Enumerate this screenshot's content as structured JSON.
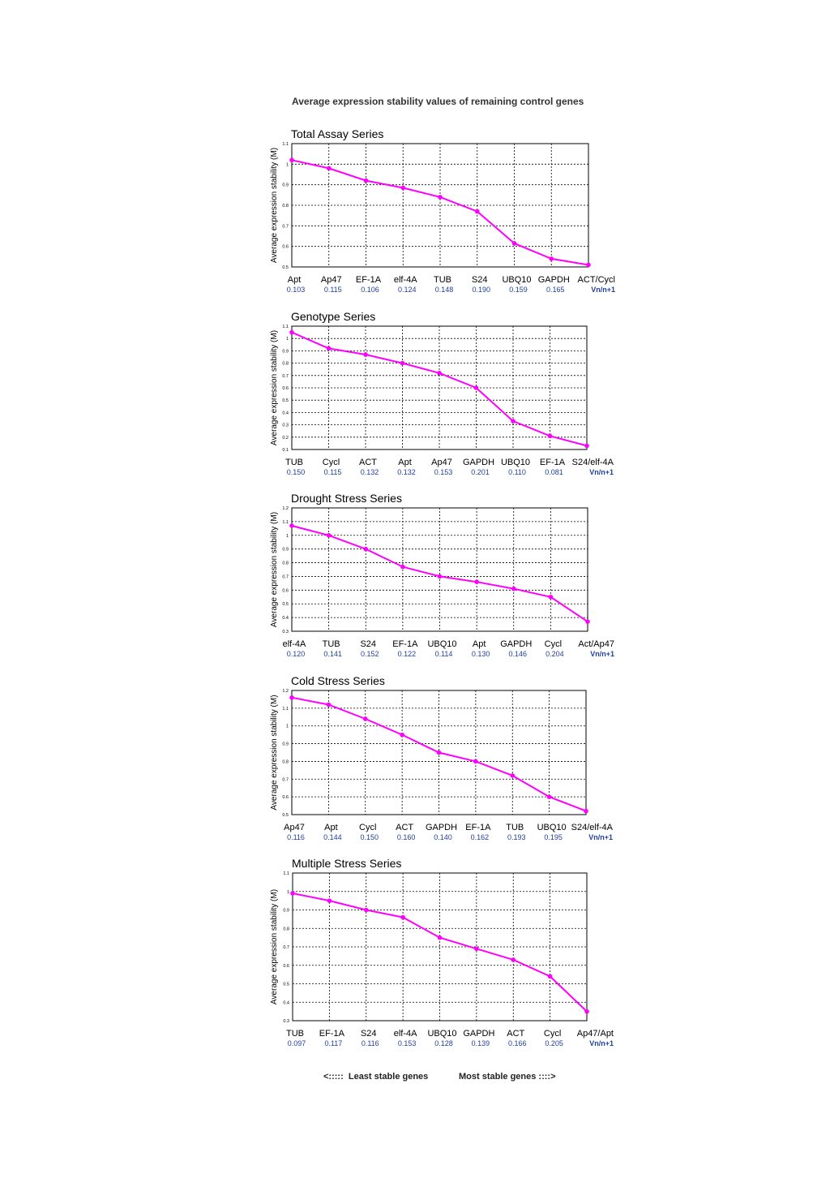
{
  "page_title": "Average expression stability values of remaining control genes",
  "footer": {
    "left_label": "<:::::  Least stable genes",
    "right_label": "Most stable genes ::::>"
  },
  "colors": {
    "line": "#ff00ff",
    "value": "#1f3f9f",
    "grid": "#000000"
  },
  "chart_data": [
    {
      "type": "line",
      "title": "Total Assay Series",
      "ylabel": "Average expression stability (M)",
      "ylim": [
        0.5,
        1.1
      ],
      "yticks": [
        "0.5",
        "0.6",
        "0.7",
        "0.8",
        "0.9",
        "1",
        "1.1"
      ],
      "categories": [
        "Apt",
        "Ap47",
        "EF-1A",
        "elf-4A",
        "TUB",
        "S24",
        "UBQ10",
        "GAPDH",
        "ACT/Cycl"
      ],
      "values": [
        1.02,
        0.98,
        0.92,
        0.885,
        0.84,
        0.77,
        0.615,
        0.54,
        0.51
      ],
      "vn_values": [
        "0.103",
        "0.115",
        "0.106",
        "0.124",
        "0.148",
        "0.190",
        "0.159",
        "0.165"
      ],
      "vn_label": "Vn/n+1",
      "grid": true
    },
    {
      "type": "line",
      "title": "Genotype Series",
      "ylabel": "Average expression stability (M)",
      "ylim": [
        0.1,
        1.1
      ],
      "yticks": [
        "0.1",
        "0.2",
        "0.3",
        "0.4",
        "0.5",
        "0.6",
        "0.7",
        "0.8",
        "0.9",
        "1",
        "1.1"
      ],
      "categories": [
        "TUB",
        "Cycl",
        "ACT",
        "Apt",
        "Ap47",
        "GAPDH",
        "UBQ10",
        "EF-1A",
        "S24/elf-4A"
      ],
      "values": [
        1.05,
        0.92,
        0.87,
        0.8,
        0.72,
        0.6,
        0.33,
        0.21,
        0.13
      ],
      "vn_values": [
        "0.150",
        "0.115",
        "0.132",
        "0.132",
        "0.153",
        "0.201",
        "0.110",
        "0.081"
      ],
      "vn_label": "Vn/n+1",
      "grid": true
    },
    {
      "type": "line",
      "title": "Drought Stress Series",
      "ylabel": "Average expression stability (M)",
      "ylim": [
        0.3,
        1.2
      ],
      "yticks": [
        "0.3",
        "0.4",
        "0.5",
        "0.6",
        "0.7",
        "0.8",
        "0.9",
        "1",
        "1.1",
        "1.2"
      ],
      "categories": [
        "elf-4A",
        "TUB",
        "S24",
        "EF-1A",
        "UBQ10",
        "Apt",
        "GAPDH",
        "Cycl",
        "Act/Ap47"
      ],
      "values": [
        1.07,
        1.0,
        0.9,
        0.77,
        0.7,
        0.66,
        0.61,
        0.55,
        0.37
      ],
      "vn_values": [
        "0.120",
        "0.141",
        "0.152",
        "0.122",
        "0.114",
        "0.130",
        "0.146",
        "0.204"
      ],
      "vn_label": "Vn/n+1",
      "grid": true
    },
    {
      "type": "line",
      "title": "Cold Stress Series",
      "ylabel": "Average expression stability (M)",
      "ylim": [
        0.5,
        1.2
      ],
      "yticks": [
        "0.5",
        "0.6",
        "0.7",
        "0.8",
        "0.9",
        "1",
        "1.1",
        "1.2"
      ],
      "categories": [
        "Ap47",
        "Apt",
        "Cycl",
        "ACT",
        "GAPDH",
        "EF-1A",
        "TUB",
        "UBQ10",
        "S24/elf-4A"
      ],
      "values": [
        1.16,
        1.12,
        1.04,
        0.95,
        0.85,
        0.8,
        0.72,
        0.6,
        0.52
      ],
      "vn_values": [
        "0.116",
        "0.144",
        "0.150",
        "0.160",
        "0.140",
        "0.162",
        "0.193",
        "0.195"
      ],
      "vn_label": "Vn/n+1",
      "grid": true
    },
    {
      "type": "line",
      "title": "Multiple Stress Series",
      "ylabel": "Average expression stability (M)",
      "ylim": [
        0.3,
        1.1
      ],
      "yticks": [
        "0.3",
        "0.4",
        "0.5",
        "0.6",
        "0.7",
        "0.8",
        "0.9",
        "1",
        "1.1"
      ],
      "categories": [
        "TUB",
        "EF-1A",
        "S24",
        "elf-4A",
        "UBQ10",
        "GAPDH",
        "ACT",
        "Cycl",
        "Ap47/Apt"
      ],
      "values": [
        0.99,
        0.95,
        0.9,
        0.86,
        0.75,
        0.69,
        0.63,
        0.54,
        0.35
      ],
      "vn_values": [
        "0.097",
        "0.117",
        "0.116",
        "0.153",
        "0.128",
        "0.139",
        "0.166",
        "0.205"
      ],
      "vn_label": "Vn/n+1",
      "grid": true
    }
  ]
}
